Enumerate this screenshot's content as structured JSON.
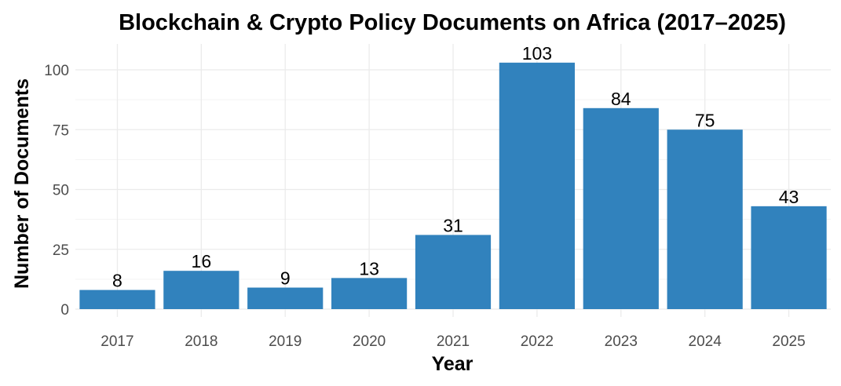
{
  "chart_data": {
    "type": "bar",
    "title": "Blockchain & Crypto Policy Documents on Africa (2017–2025)",
    "xlabel": "Year",
    "ylabel": "Number of Documents",
    "categories": [
      "2017",
      "2018",
      "2019",
      "2020",
      "2021",
      "2022",
      "2023",
      "2024",
      "2025"
    ],
    "values": [
      8,
      16,
      9,
      13,
      31,
      103,
      84,
      75,
      43
    ],
    "ylim": [
      0,
      110
    ],
    "yticks": [
      0,
      25,
      50,
      75,
      100
    ],
    "grid": true,
    "bar_color": "#3182bd"
  }
}
